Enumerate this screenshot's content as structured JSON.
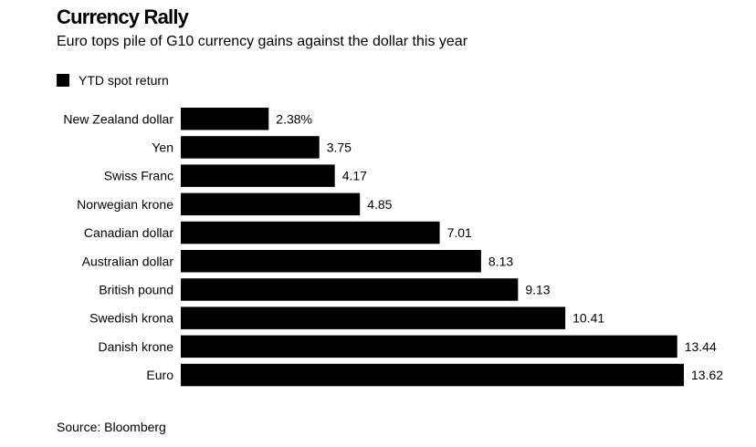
{
  "header": {
    "title": "Currency Rally",
    "subtitle": "Euro tops pile of G10 currency gains against the dollar this year"
  },
  "footer": {
    "source": "Source: Bloomberg"
  },
  "colors": {
    "bar": "#000000",
    "text": "#000000",
    "background": "#ffffff"
  },
  "chart_data": {
    "type": "bar",
    "orientation": "horizontal",
    "title": "Currency Rally",
    "subtitle": "Euro tops pile of G10 currency gains against the dollar this year",
    "legend_placement": "top-left",
    "grid": false,
    "xlim": [
      0,
      13.62
    ],
    "categories": [
      "New Zealand dollar",
      "Yen",
      "Swiss Franc",
      "Norwegian krone",
      "Canadian dollar",
      "Australian dollar",
      "British pound",
      "Swedish krona",
      "Danish krone",
      "Euro"
    ],
    "series": [
      {
        "name": "YTD spot return",
        "values": [
          2.38,
          3.75,
          4.17,
          4.85,
          7.01,
          8.13,
          9.13,
          10.41,
          13.44,
          13.62
        ],
        "labels": [
          "2.38%",
          "3.75",
          "4.17",
          "4.85",
          "7.01",
          "8.13",
          "9.13",
          "10.41",
          "13.44",
          "13.62"
        ]
      }
    ]
  }
}
